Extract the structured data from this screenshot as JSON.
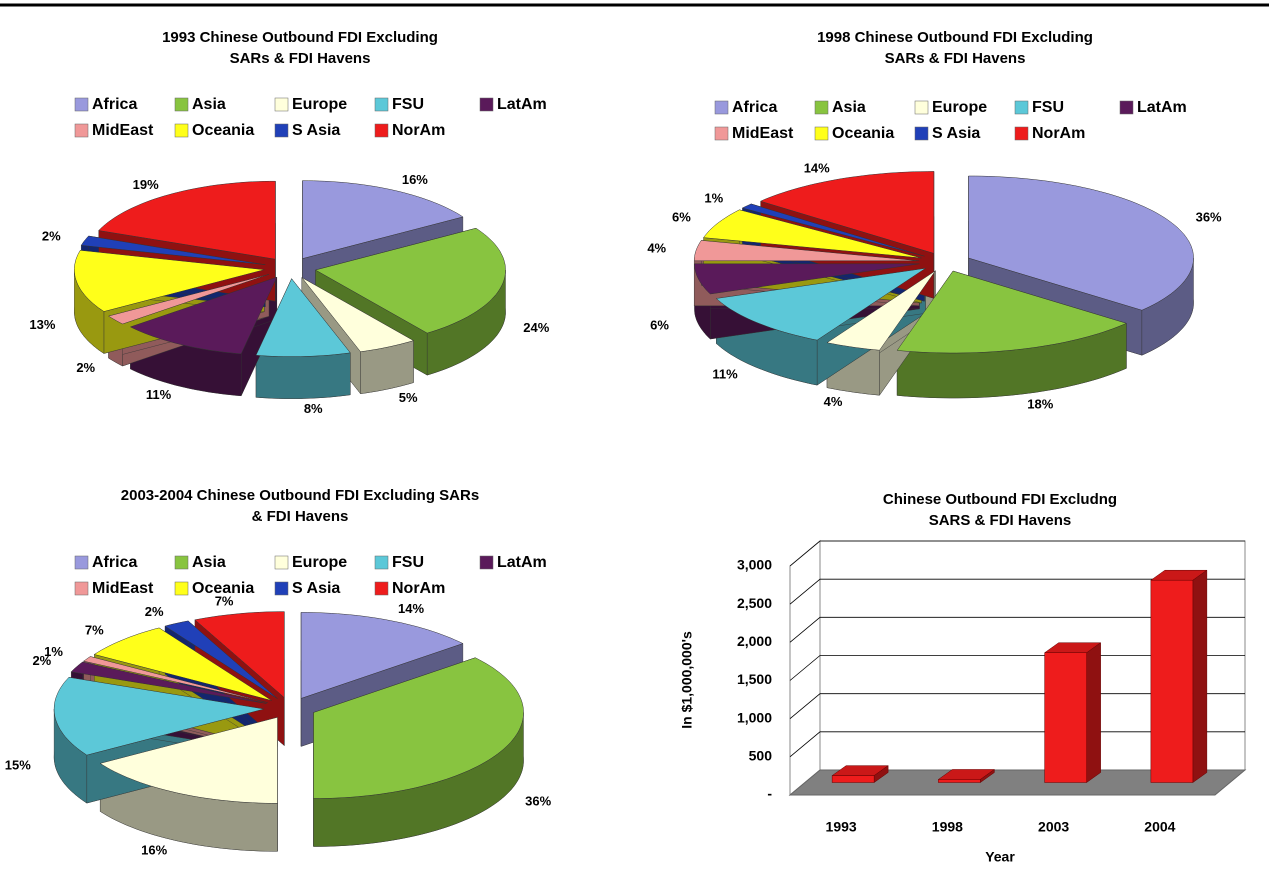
{
  "chart_data": [
    {
      "type": "pie",
      "title": [
        "1993 Chinese Outbound FDI Excluding",
        "SARs & FDI Havens"
      ],
      "categories": [
        "Africa",
        "Asia",
        "Europe",
        "FSU",
        "LatAm",
        "MidEast",
        "Oceania",
        "S Asia",
        "NorAm"
      ],
      "values": [
        16,
        24,
        5,
        8,
        11,
        2,
        13,
        2,
        19
      ],
      "value_labels": [
        "16%",
        "24%",
        "5%",
        "8%",
        "11%",
        "2%",
        "13%",
        "2%",
        "19%"
      ],
      "colors": [
        "#9999dd",
        "#88c440",
        "#ffffdc",
        "#5cc8d8",
        "#5a1a5a",
        "#f09898",
        "#ffff1a",
        "#2040b8",
        "#ee1c1c"
      ]
    },
    {
      "type": "pie",
      "title": [
        "1998 Chinese Outbound FDI Excluding",
        "SARs & FDI Havens"
      ],
      "categories": [
        "Africa",
        "Asia",
        "Europe",
        "FSU",
        "LatAm",
        "MidEast",
        "Oceania",
        "S Asia",
        "NorAm"
      ],
      "values": [
        36,
        18,
        4,
        11,
        6,
        4,
        6,
        1,
        14
      ],
      "value_labels": [
        "36%",
        "18%",
        "4%",
        "11%",
        "6%",
        "4%",
        "6%",
        "1%",
        "14%"
      ],
      "colors": [
        "#9999dd",
        "#88c440",
        "#ffffdc",
        "#5cc8d8",
        "#5a1a5a",
        "#f09898",
        "#ffff1a",
        "#2040b8",
        "#ee1c1c"
      ]
    },
    {
      "type": "pie",
      "title": [
        "2003-2004 Chinese Outbound FDI Excluding SARs",
        "& FDI Havens"
      ],
      "categories": [
        "Africa",
        "Asia",
        "Europe",
        "FSU",
        "LatAm",
        "MidEast",
        "Oceania",
        "S Asia",
        "NorAm"
      ],
      "values": [
        14,
        36,
        16,
        15,
        2,
        1,
        7,
        2,
        7
      ],
      "value_labels": [
        "14%",
        "36%",
        "16%",
        "15%",
        "2%",
        "1%",
        "7%",
        "2%",
        "7%"
      ],
      "colors": [
        "#9999dd",
        "#88c440",
        "#ffffdc",
        "#5cc8d8",
        "#5a1a5a",
        "#f09898",
        "#ffff1a",
        "#2040b8",
        "#ee1c1c"
      ]
    },
    {
      "type": "bar",
      "title": [
        "Chinese Outbound FDI Excludng",
        "SARS & FDI Havens"
      ],
      "categories": [
        "1993",
        "1998",
        "2003",
        "2004"
      ],
      "values": [
        90,
        40,
        1700,
        2650
      ],
      "color": "#ee1c1c",
      "ylabel": "In $1,000,000's",
      "xlabel": "Year",
      "ylim": [
        0,
        3000
      ],
      "yticks": [
        {
          "value": 0,
          "label": "-"
        },
        500,
        {
          "value": 1000,
          "label": "1,000"
        },
        {
          "value": 1500,
          "label": "1,500"
        },
        {
          "value": 2000,
          "label": "2,000"
        },
        {
          "value": 2500,
          "label": "2,500"
        },
        {
          "value": 3000,
          "label": "3,000"
        }
      ],
      "grid": true
    }
  ]
}
